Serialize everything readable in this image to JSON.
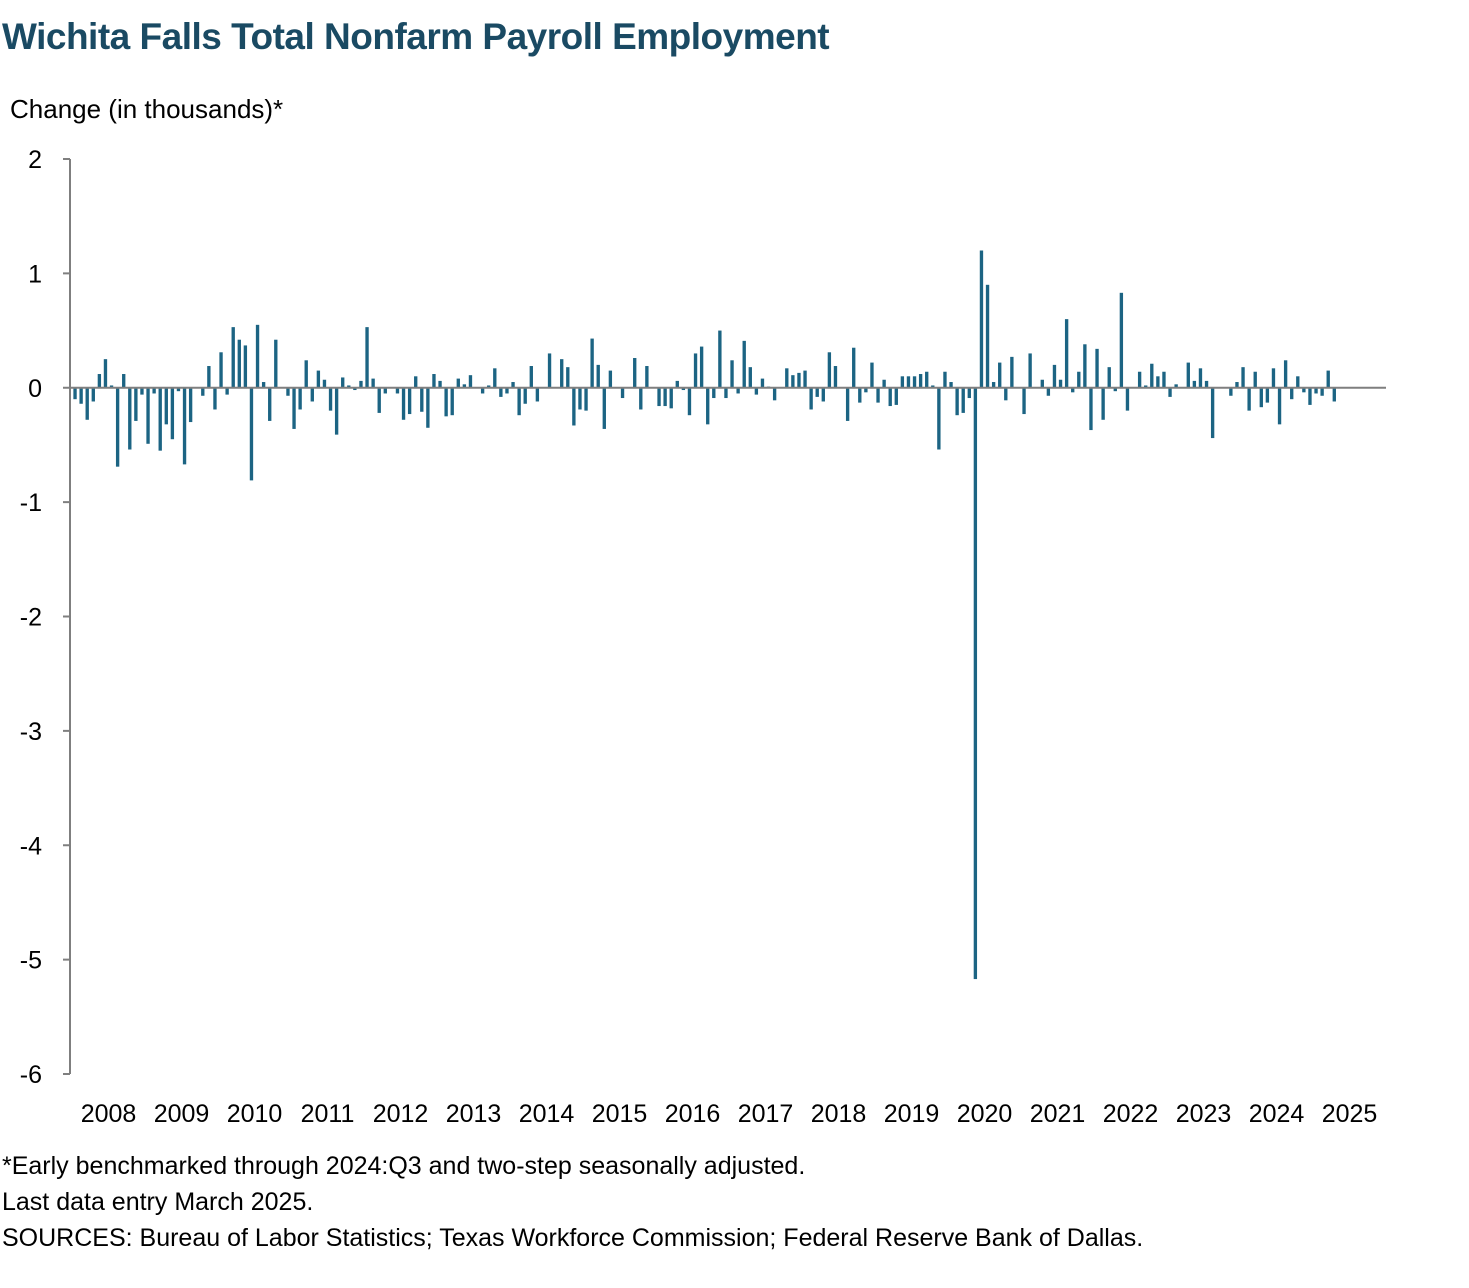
{
  "chart_data": {
    "type": "bar",
    "title": "Wichita Falls Total Nonfarm Payroll Employment",
    "ylabel": "Change (in thousands)*",
    "xlabel": "",
    "ylim": [
      -6,
      2
    ],
    "y_ticks": [
      2,
      1,
      0,
      -1,
      -2,
      -3,
      -4,
      -5,
      -6
    ],
    "x_tick_labels": [
      "2008",
      "2009",
      "2010",
      "2011",
      "2012",
      "2013",
      "2014",
      "2015",
      "2016",
      "2017",
      "2018",
      "2019",
      "2020",
      "2021",
      "2022",
      "2023",
      "2024",
      "2025"
    ],
    "x_start": "2008-01",
    "x_end": "2025-03",
    "grid": false,
    "legend": "none",
    "bar_color": "#1c6483",
    "series": [
      {
        "values": [
          -0.1,
          -0.14,
          -0.28,
          -0.12,
          0.12,
          0.25,
          0.02,
          -0.69,
          0.12,
          -0.54,
          -0.29,
          -0.06,
          -0.49,
          -0.05,
          -0.55,
          -0.32,
          -0.45,
          -0.03,
          -0.67,
          -0.3,
          0.0,
          -0.07,
          0.19,
          -0.19,
          0.31,
          -0.06,
          0.53,
          0.42,
          0.37,
          -0.81,
          0.55,
          0.05,
          -0.29,
          0.42,
          0.0,
          -0.07,
          -0.36,
          -0.19,
          0.24,
          -0.12,
          0.15,
          0.07,
          -0.2,
          -0.41,
          0.09,
          0.02,
          -0.02,
          0.06,
          0.53,
          0.08,
          -0.22,
          -0.05,
          0.0,
          -0.05,
          -0.28,
          -0.23,
          0.1,
          -0.21,
          -0.35,
          0.12,
          0.06,
          -0.25,
          -0.24,
          0.08,
          0.03,
          0.11,
          0.0,
          -0.05,
          0.02,
          0.17,
          -0.08,
          -0.05,
          0.05,
          -0.24,
          -0.14,
          0.19,
          -0.12,
          0.0,
          0.3,
          0.0,
          0.25,
          0.18,
          -0.33,
          -0.19,
          -0.2,
          0.43,
          0.2,
          -0.36,
          0.15,
          0.0,
          -0.09,
          0.0,
          0.26,
          -0.19,
          0.19,
          0.0,
          -0.16,
          -0.16,
          -0.18,
          0.06,
          -0.02,
          -0.24,
          0.3,
          0.36,
          -0.32,
          -0.09,
          0.5,
          -0.09,
          0.24,
          -0.05,
          0.41,
          0.18,
          -0.06,
          0.08,
          0.01,
          -0.11,
          0.0,
          0.17,
          0.11,
          0.13,
          0.15,
          -0.19,
          -0.08,
          -0.12,
          0.31,
          0.19,
          0.0,
          -0.29,
          0.35,
          -0.13,
          -0.04,
          0.22,
          -0.13,
          0.07,
          -0.16,
          -0.15,
          0.1,
          0.1,
          0.1,
          0.12,
          0.14,
          0.02,
          -0.54,
          0.14,
          0.05,
          -0.24,
          -0.22,
          -0.09,
          -5.17,
          1.2,
          0.9,
          0.05,
          0.22,
          -0.11,
          0.27,
          0.0,
          -0.23,
          0.3,
          0.0,
          0.07,
          -0.07,
          0.2,
          0.07,
          0.6,
          -0.04,
          0.14,
          0.38,
          -0.37,
          0.34,
          -0.28,
          0.18,
          -0.03,
          0.83,
          -0.2,
          0.0,
          0.14,
          0.02,
          0.21,
          0.1,
          0.14,
          -0.08,
          0.03,
          0.0,
          0.22,
          0.06,
          0.17,
          0.06,
          -0.44,
          0.0,
          0.0,
          -0.07,
          0.05,
          0.18,
          -0.2,
          0.14,
          -0.17,
          -0.13,
          0.17,
          -0.32,
          0.24,
          -0.1,
          0.1,
          -0.04,
          -0.15,
          -0.05,
          -0.07,
          0.15,
          -0.12,
          0.0
        ]
      }
    ]
  },
  "notes": {
    "line1": "*Early benchmarked through 2024:Q3 and two-step seasonally adjusted.",
    "line2": "Last data entry March 2025.",
    "line3": "SOURCES: Bureau of Labor Statistics; Texas Workforce Commission; Federal Reserve Bank of Dallas."
  },
  "colors": {
    "title": "#1a4a63",
    "bar": "#1c6483",
    "axis": "#7f7f7f"
  }
}
